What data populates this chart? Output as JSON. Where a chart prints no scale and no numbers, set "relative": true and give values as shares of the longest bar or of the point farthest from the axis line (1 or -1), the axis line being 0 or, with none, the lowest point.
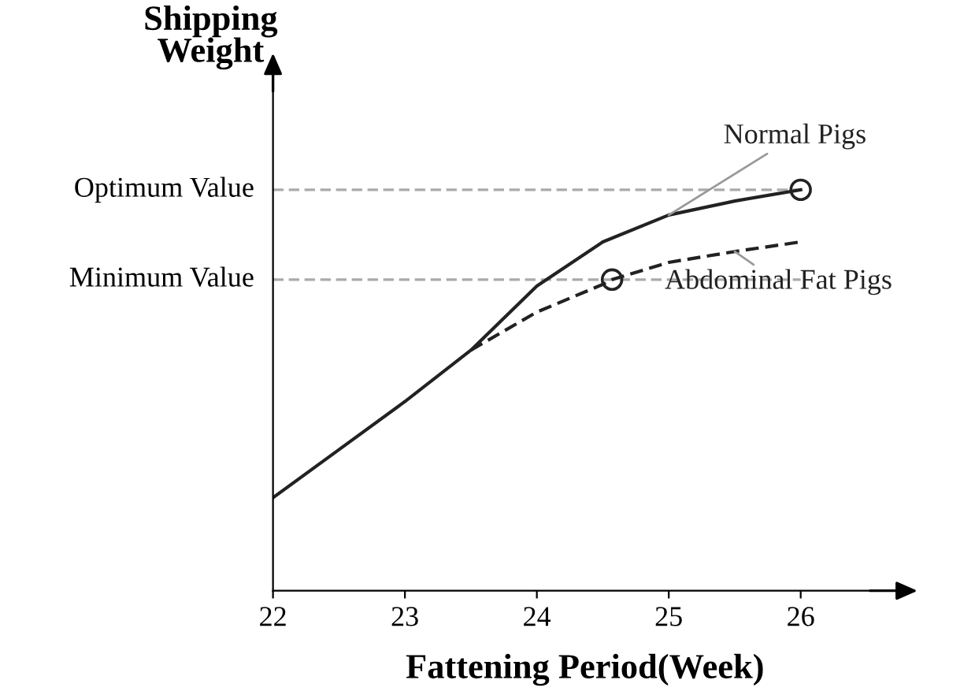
{
  "chart_data": {
    "type": "line",
    "relative": true,
    "xlabel": "Fattening Period(Week)",
    "ylabel": "Shipping Weight",
    "xlim": [
      22,
      26.73
    ],
    "xticks": [
      22,
      23,
      24,
      25,
      26
    ],
    "grid": false,
    "series": [
      {
        "name": "Normal Pigs",
        "color": "#222222",
        "line_style": "solid",
        "marker": "none",
        "x": [
          22,
          22.5,
          23,
          23.5,
          24,
          24.5,
          25,
          25.5,
          26
        ],
        "values": [
          0.232,
          0.352,
          0.472,
          0.6,
          0.76,
          0.87,
          0.937,
          0.972,
          1.0
        ]
      },
      {
        "name": "Abdominal Fat Pigs",
        "color": "#222222",
        "line_style": "dashed",
        "marker": "none",
        "x": [
          23.5,
          24,
          24.5,
          24.57,
          25,
          25.5,
          26
        ],
        "values": [
          0.6,
          0.695,
          0.764,
          0.776,
          0.819,
          0.846,
          0.87
        ]
      },
      {
        "type": "scatter",
        "color": "#222222",
        "marker": "circle",
        "x": [
          24.57,
          26
        ],
        "values": [
          0.776,
          1.0
        ]
      }
    ],
    "ref_lines": [
      {
        "axis": "y",
        "value": 1.0,
        "label": "Optimum Value",
        "color": "#aaaaaa",
        "line_style": "dashed"
      },
      {
        "axis": "y",
        "value": 0.776,
        "label": "Minimum Value",
        "color": "#aaaaaa",
        "line_style": "dashed"
      }
    ]
  }
}
